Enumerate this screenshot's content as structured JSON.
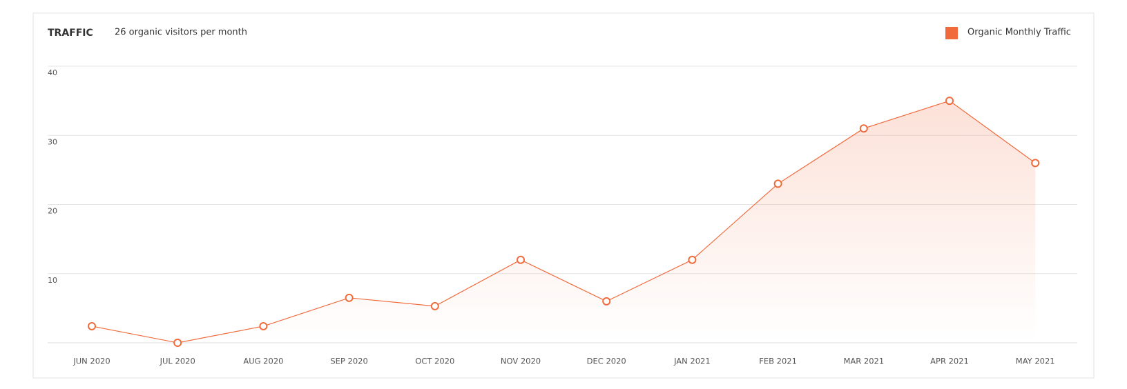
{
  "chart_data": {
    "type": "line",
    "title": "TRAFFIC",
    "subtitle": "26 organic visitors per month",
    "categories": [
      "JUN 2020",
      "JUL 2020",
      "AUG 2020",
      "SEP 2020",
      "OCT 2020",
      "NOV 2020",
      "DEC 2020",
      "JAN 2021",
      "FEB 2021",
      "MAR 2021",
      "APR 2021",
      "MAY 2021"
    ],
    "series": [
      {
        "name": "Organic Monthly Traffic",
        "color": "#f06a3c",
        "values": [
          2.4,
          0,
          2.4,
          6.5,
          5.3,
          12,
          6,
          12,
          23,
          31,
          35,
          26
        ]
      }
    ],
    "ylim": [
      0,
      40
    ],
    "yticks": [
      10,
      20,
      30,
      40
    ],
    "grid": true,
    "legend": "top-right"
  }
}
